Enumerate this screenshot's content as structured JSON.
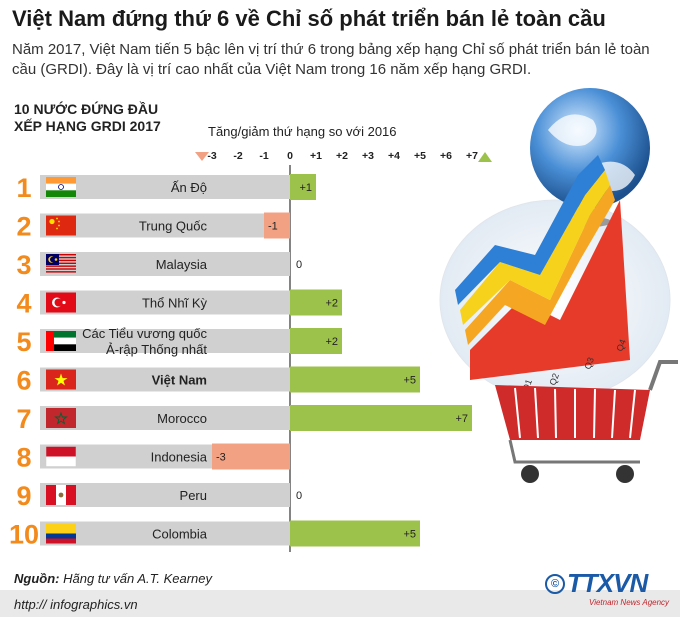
{
  "header": {
    "title": "Việt Nam đứng thứ 6 về Chỉ số phát triển bán lẻ toàn cầu",
    "subtitle": "Năm 2017, Việt Nam tiến 5 bậc lên vị trí thứ 6 trong bảng xếp hạng Chỉ số phát triển bán lẻ toàn cầu (GRDI). Đây là vị trí cao nhất của Việt Nam trong 16 năm xếp hạng GRDI.",
    "top10_line1": "10 NƯỚC ĐỨNG ĐẦU",
    "top10_line2": "XẾP HẠNG GRDI 2017"
  },
  "chart_data": {
    "type": "bar",
    "orientation": "horizontal",
    "title": "Tăng/giảm thứ hạng so với 2016",
    "xlim": [
      -3,
      7
    ],
    "ticks": [
      "-3",
      "-2",
      "-1",
      "0",
      "+1",
      "+2",
      "+3",
      "+4",
      "+5",
      "+6",
      "+7"
    ],
    "categories": [
      {
        "rank": "1",
        "name": "Ấn Độ",
        "value": 1,
        "label": "+1",
        "flag": "india-flag"
      },
      {
        "rank": "2",
        "name": "Trung Quốc",
        "value": -1,
        "label": "-1",
        "flag": "china-flag"
      },
      {
        "rank": "3",
        "name": "Malaysia",
        "value": 0,
        "label": "0",
        "flag": "malaysia-flag"
      },
      {
        "rank": "4",
        "name": "Thổ Nhĩ Kỳ",
        "value": 2,
        "label": "+2",
        "flag": "turkey-flag"
      },
      {
        "rank": "5",
        "name": "Các Tiểu vương quốc Ả-rập Thống nhất",
        "name_line1": "Các Tiểu vương quốc",
        "name_line2": "Ả-rập Thống nhất",
        "value": 2,
        "label": "+2",
        "flag": "uae-flag"
      },
      {
        "rank": "6",
        "name": "Việt Nam",
        "value": 5,
        "label": "+5",
        "flag": "vietnam-flag",
        "highlight": true
      },
      {
        "rank": "7",
        "name": "Morocco",
        "value": 7,
        "label": "+7",
        "flag": "morocco-flag"
      },
      {
        "rank": "8",
        "name": "Indonesia",
        "value": -3,
        "label": "-3",
        "flag": "indonesia-flag"
      },
      {
        "rank": "9",
        "name": "Peru",
        "value": 0,
        "label": "0",
        "flag": "peru-flag"
      },
      {
        "rank": "10",
        "name": "Colombia",
        "value": 5,
        "label": "+5",
        "flag": "colombia-flag"
      }
    ],
    "colors": {
      "positive": "#9dc24b",
      "negative": "#f3a183",
      "rank": "#f28a1c",
      "row": "#d0d0d0",
      "up_arrow": "#9dc24b",
      "down_arrow": "#f3a183"
    }
  },
  "illustration": {
    "chart_labels": [
      "Q1",
      "Q2",
      "Q3",
      "Q4"
    ]
  },
  "footer": {
    "source_label": "Nguồn:",
    "source_text": " Hãng tư vấn A.T. Kearney",
    "site": "http:// infographics.vn",
    "logo_text": "TTXVN",
    "logo_sub": "Vietnam News Agency",
    "logo_mark": "©"
  }
}
